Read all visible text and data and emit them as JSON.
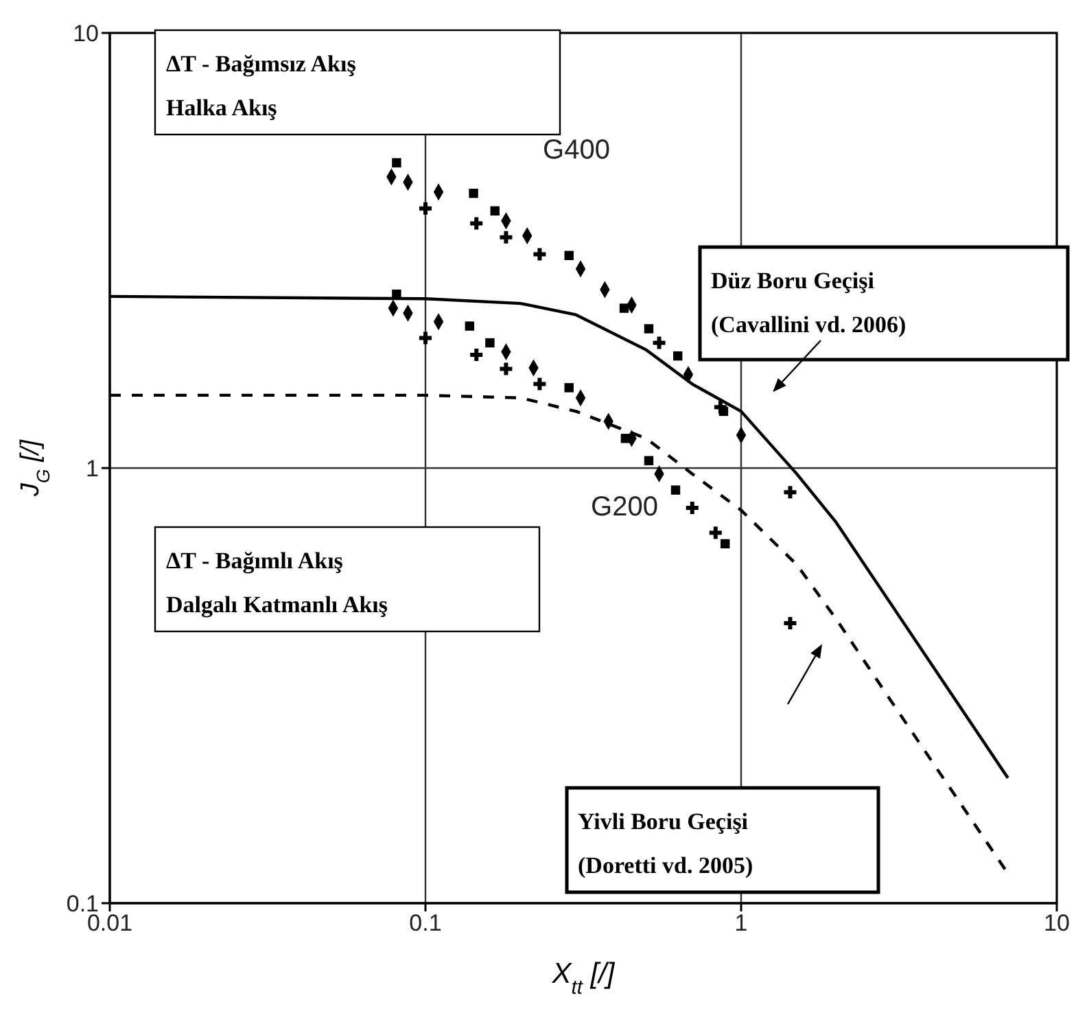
{
  "chart_data": {
    "type": "line",
    "xlabel": "X$_{tt}$ [/]",
    "ylabel": "J$_{G}$ [/]",
    "log": "xy",
    "grid": true,
    "xlim": [
      0.01,
      10
    ],
    "xticks": [
      0.01,
      0.1,
      1,
      10
    ],
    "ylim": [
      0.1,
      10
    ],
    "yticks": [
      0.1,
      1,
      10
    ],
    "series": [
      {
        "color": "#000000",
        "line_style": "solid",
        "x": [
          0.01,
          0.1,
          0.2,
          0.3,
          0.5,
          0.7,
          1,
          1.5,
          2,
          7
        ],
        "values": [
          2.48,
          2.45,
          2.39,
          2.25,
          1.87,
          1.56,
          1.35,
          0.97,
          0.75,
          0.194
        ]
      },
      {
        "color": "#000000",
        "line_style": "dashed",
        "x": [
          0.01,
          0.1,
          0.2,
          0.3,
          0.5,
          0.7,
          1,
          1.5,
          2,
          3,
          7
        ],
        "values": [
          1.47,
          1.47,
          1.45,
          1.35,
          1.17,
          0.97,
          0.8,
          0.6,
          0.45,
          0.29,
          0.117
        ]
      },
      {
        "type": "scatter",
        "marker": "square",
        "color": "#000000",
        "x": [
          0.081,
          0.142,
          0.166,
          0.285,
          0.426,
          0.51,
          0.63,
          0.88,
          0.081,
          0.138,
          0.16,
          0.285,
          0.43,
          0.51,
          0.62,
          0.89
        ],
        "values": [
          5.03,
          4.28,
          3.9,
          3.08,
          2.33,
          2.09,
          1.81,
          1.35,
          2.51,
          2.12,
          1.94,
          1.53,
          1.17,
          1.04,
          0.89,
          0.67
        ]
      },
      {
        "type": "scatter",
        "marker": "diamond",
        "color": "#000000",
        "x": [
          0.078,
          0.088,
          0.11,
          0.18,
          0.21,
          0.31,
          0.37,
          0.45,
          0.68,
          1.0,
          0.079,
          0.088,
          0.11,
          0.18,
          0.22,
          0.31,
          0.38,
          0.45,
          0.55
        ],
        "values": [
          4.67,
          4.54,
          4.31,
          3.7,
          3.42,
          2.87,
          2.57,
          2.37,
          1.64,
          1.19,
          2.33,
          2.27,
          2.17,
          1.85,
          1.7,
          1.45,
          1.28,
          1.17,
          0.97
        ]
      },
      {
        "type": "scatter",
        "marker": "cross",
        "color": "#000000",
        "x": [
          0.1,
          0.145,
          0.18,
          0.23,
          0.55,
          0.86,
          1.43,
          0.1,
          0.145,
          0.18,
          0.23,
          0.7,
          0.83,
          1.43
        ],
        "values": [
          3.95,
          3.65,
          3.39,
          3.1,
          1.94,
          1.38,
          0.88,
          1.99,
          1.82,
          1.69,
          1.56,
          0.81,
          0.71,
          0.44
        ]
      }
    ],
    "annotations": [
      "ΔT - Bağımsız Akış\nHalka Akış",
      "ΔT - Bağımlı Akış\nDalgalı Katmanlı Akış",
      "Düz Boru Geçişi\n(Cavallini vd. 2006)",
      "Yivli Boru Geçişi\n(Doretti vd. 2005)",
      "G400",
      "G200"
    ]
  }
}
